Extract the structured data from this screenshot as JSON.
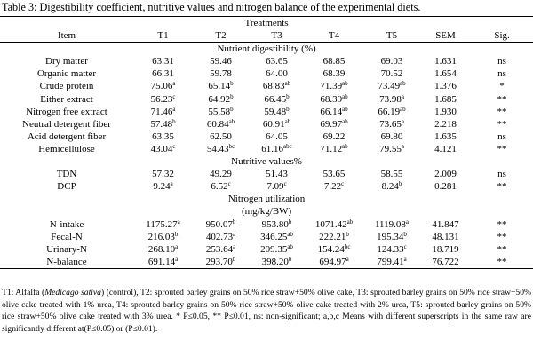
{
  "caption": "Table 3: Digestibility coefficient, nutritive values and nitrogen balance of the experimental diets.",
  "treatments_header": "Treatments",
  "columns": [
    "Item",
    "T1",
    "T2",
    "T3",
    "T4",
    "T5",
    "SEM",
    "Sig."
  ],
  "sections": [
    {
      "label": "Nutrient digestibility (%)",
      "rows": [
        {
          "item": "Dry matter",
          "vals": [
            [
              "63.31",
              ""
            ],
            [
              "59.46",
              ""
            ],
            [
              "63.65",
              ""
            ],
            [
              "68.85",
              ""
            ],
            [
              "69.03",
              ""
            ]
          ],
          "sem": "1.631",
          "sig": "ns"
        },
        {
          "item": "Organic matter",
          "vals": [
            [
              "66.31",
              ""
            ],
            [
              "59.78",
              ""
            ],
            [
              "64.00",
              ""
            ],
            [
              "68.39",
              ""
            ],
            [
              "70.52",
              ""
            ]
          ],
          "sem": "1.654",
          "sig": "ns"
        },
        {
          "item": "Crude protein",
          "vals": [
            [
              "75.06",
              "a"
            ],
            [
              "65.14",
              "b"
            ],
            [
              "68.83",
              "ab"
            ],
            [
              "71.39",
              "ab"
            ],
            [
              "73.49",
              "ab"
            ]
          ],
          "sem": "1.376",
          "sig": "*"
        },
        {
          "item": "Either extract",
          "vals": [
            [
              "56.23",
              "c"
            ],
            [
              "64.92",
              "b"
            ],
            [
              "66.45",
              "b"
            ],
            [
              "68.39",
              "ab"
            ],
            [
              "73.98",
              "a"
            ]
          ],
          "sem": "1.685",
          "sig": "**"
        },
        {
          "item": "Nitrogen free extract",
          "vals": [
            [
              "71.46",
              "a"
            ],
            [
              "55.58",
              "b"
            ],
            [
              "59.48",
              "b"
            ],
            [
              "66.14",
              "ab"
            ],
            [
              "66.19",
              "ab"
            ]
          ],
          "sem": "1.930",
          "sig": "**"
        },
        {
          "item": "Neutral detergent fiber",
          "vals": [
            [
              "57.48",
              "b"
            ],
            [
              "60.84",
              "ab"
            ],
            [
              "60.91",
              "ab"
            ],
            [
              "69.97",
              "ab"
            ],
            [
              "73.65",
              "a"
            ]
          ],
          "sem": "2.218",
          "sig": "**"
        },
        {
          "item": "Acid detergent fiber",
          "vals": [
            [
              "63.35",
              ""
            ],
            [
              "62.50",
              ""
            ],
            [
              "64.05",
              ""
            ],
            [
              "69.22",
              ""
            ],
            [
              "69.80",
              ""
            ]
          ],
          "sem": "1.635",
          "sig": "ns"
        },
        {
          "item": "Hemicellulose",
          "vals": [
            [
              "43.04",
              "c"
            ],
            [
              "54.43",
              "bc"
            ],
            [
              "61.16",
              "abc"
            ],
            [
              "71.12",
              "ab"
            ],
            [
              "79.55",
              "a"
            ]
          ],
          "sem": "4.121",
          "sig": "**"
        }
      ]
    },
    {
      "label": "Nutritive values%",
      "rows": [
        {
          "item": "TDN",
          "vals": [
            [
              "57.32",
              ""
            ],
            [
              "49.29",
              ""
            ],
            [
              "51.43",
              ""
            ],
            [
              "53.65",
              ""
            ],
            [
              "58.55",
              ""
            ]
          ],
          "sem": "2.009",
          "sig": "ns"
        },
        {
          "item": "DCP",
          "vals": [
            [
              "9.24",
              "a"
            ],
            [
              "6.52",
              "c"
            ],
            [
              "7.09",
              "c"
            ],
            [
              "7.22",
              "c"
            ],
            [
              "8.24",
              "b"
            ]
          ],
          "sem": "0.281",
          "sig": "**"
        }
      ]
    },
    {
      "label": "Nitrogen utilization",
      "label2": "(mg/kg/BW)",
      "rows": [
        {
          "item": "N-intake",
          "vals": [
            [
              "1175.27",
              "a"
            ],
            [
              "950.07",
              "b"
            ],
            [
              "953.80",
              "b"
            ],
            [
              "1071.42",
              "ab"
            ],
            [
              "1119.08",
              "a"
            ]
          ],
          "sem": "41.847",
          "sig": "**"
        },
        {
          "item": "Fecal-N",
          "vals": [
            [
              "216.03",
              "b"
            ],
            [
              "402.73",
              "a"
            ],
            [
              "346.25",
              "ab"
            ],
            [
              "222.21",
              "b"
            ],
            [
              "195.34",
              "b"
            ]
          ],
          "sem": "48.131",
          "sig": "**"
        },
        {
          "item": "Urinary-N",
          "vals": [
            [
              "268.10",
              "a"
            ],
            [
              "253.64",
              "a"
            ],
            [
              "209.35",
              "ab"
            ],
            [
              "154.24",
              "bc"
            ],
            [
              "124.33",
              "c"
            ]
          ],
          "sem": "18.719",
          "sig": "**"
        },
        {
          "item": "N-balance",
          "vals": [
            [
              "691.14",
              "a"
            ],
            [
              "293.70",
              "b"
            ],
            [
              "398.20",
              "b"
            ],
            [
              "694.97",
              "a"
            ],
            [
              "799.41",
              "a"
            ]
          ],
          "sem": "76.722",
          "sig": "**"
        }
      ]
    }
  ],
  "footnote": {
    "p1": "T1: Alfalfa (",
    "p1_italic": "Medicago sativa",
    "p2": ") (control), T2: sprouted barley grains on 50% rice straw+50% olive cake, T3: sprouted barley grains on 50% rice straw+50% olive cake treated with 1% urea, T4: sprouted barley grains on 50% rice straw+50% olive cake treated with 2% urea, T5: sprouted barley grains on 50% rice straw+50% olive cake treated with 3% urea. * P≤0.05, ** P≤0.01, ns: non-significant; a,b,c Means with different superscripts in the same raw are significantly different at(P≤0.05) or (P≤0.01)."
  }
}
